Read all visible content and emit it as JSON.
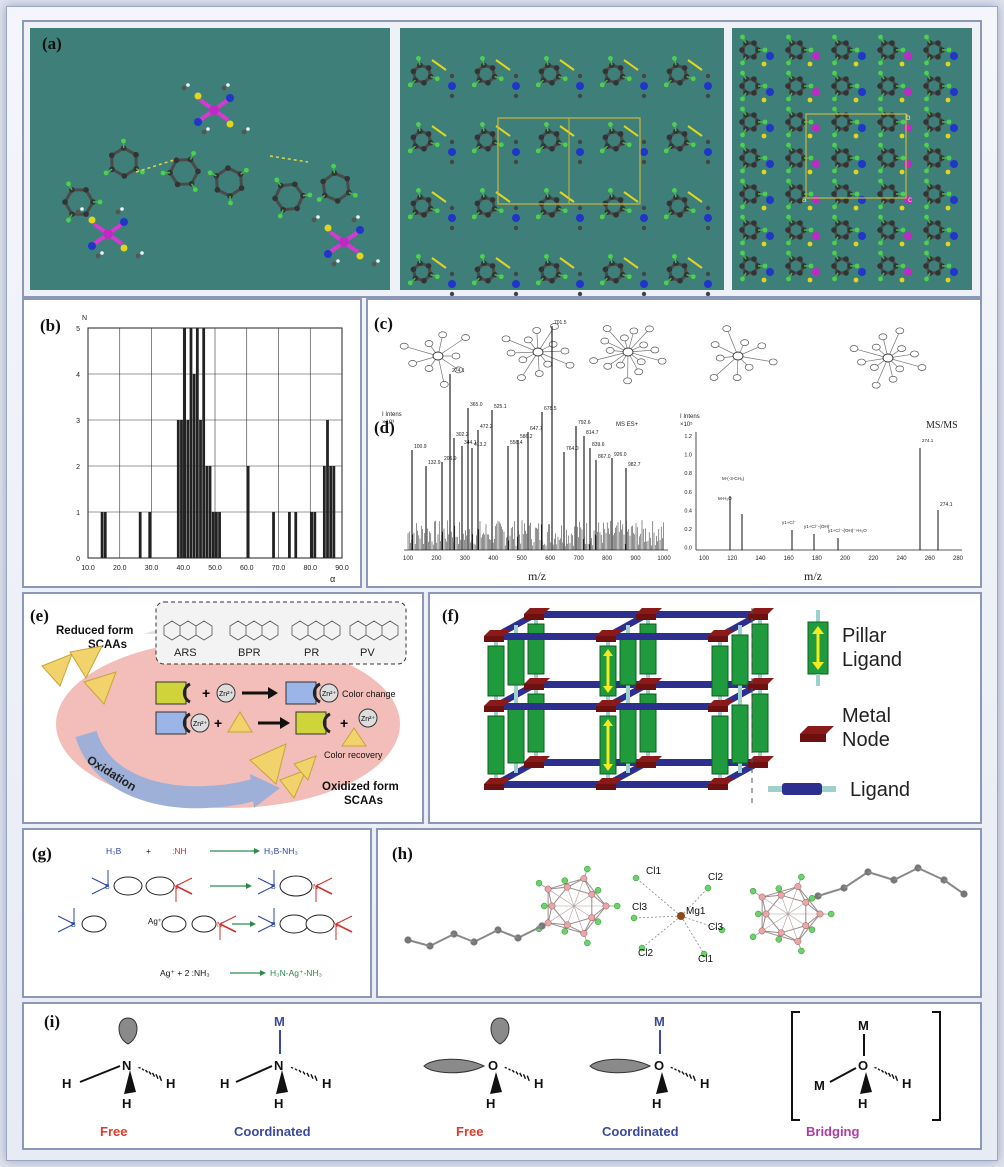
{
  "panels": {
    "a": {
      "label": "(a)",
      "cell_marks": [
        "b",
        "a",
        "c"
      ]
    },
    "b": {
      "label": "(b)"
    },
    "c": {
      "label": "(c)"
    },
    "d": {
      "label": "(d)",
      "left_header_intens": "I Intens",
      "left_header_scale": "×10³",
      "left_tag": "MS ES+",
      "right_header_intens": "I Intens",
      "right_header_scale": "×10⁵",
      "right_title": "MS/MS",
      "xlabel": "m/z",
      "left_peak_labels": [
        "100.9",
        "132.9",
        "206.9",
        "274.1",
        "302.2",
        "344.1",
        "365.0",
        "413.2",
        "472.2",
        "525.1",
        "556.4",
        "586.2",
        "647.7",
        "678.5",
        "701.5",
        "764.0",
        "792.6",
        "814.7",
        "839.6",
        "867.0",
        "926.0",
        "982.7"
      ],
      "right_peak_labels": [
        "M-(-3-CH₃)",
        "M-H₂O",
        "y1+Cl⁻",
        "y1+Cl⁻-(OH)⁻",
        "y1+Cl⁻-(OH)⁻+H₂O",
        "274.1"
      ],
      "left_ticks": [
        "100",
        "200",
        "300",
        "400",
        "500",
        "600",
        "700",
        "800",
        "900",
        "1000"
      ],
      "right_ticks": [
        "100",
        "120",
        "140",
        "160",
        "180",
        "200",
        "220",
        "240",
        "260",
        "280"
      ],
      "right_yticks": [
        "1.2",
        "1.0",
        "0.8",
        "0.6",
        "0.4",
        "0.2",
        "0.0"
      ]
    },
    "e": {
      "label": "(e)",
      "reduced": "Reduced form\nSCAAs",
      "dyes": [
        "ARS",
        "BPR",
        "PR",
        "PV"
      ],
      "zn": "Zn²⁺",
      "color_change": "Color change",
      "color_recovery": "Color recovery",
      "oxidation": "Oxidation",
      "oxidized": "Oxidized form\nSCAAs"
    },
    "f": {
      "label": "(f)",
      "legend": [
        "Pillar\nLigand",
        "Metal\nNode",
        "Ligand"
      ]
    },
    "g": {
      "label": "(g)",
      "eq1_left": "H₃B",
      "eq1_plus": "+",
      "eq1_mid": ":NH",
      "eq1_right": "H₃B-NH₃",
      "eq2_left": "Ag⁺",
      "eq3": "Ag⁺  +  2 :NH₃",
      "eq3_right": "H₃N-Ag⁺-NH₃"
    },
    "h": {
      "label": "(h)",
      "atoms": [
        "Cl1",
        "Cl2",
        "Mg1",
        "Cl3",
        "Cl3",
        "Cl2",
        "Cl1"
      ]
    },
    "i": {
      "label": "(i)",
      "captions": [
        "Free",
        "Coordinated",
        "Free",
        "Coordinated",
        "Bridging"
      ],
      "caption_colors": [
        "#e03a2a",
        "#3a4aa0",
        "#e03a2a",
        "#3a4aa0",
        "#b03aa8"
      ]
    }
  },
  "chart_data": {
    "type": "bar",
    "xlabel": "α",
    "ylabel": "N",
    "xlim": [
      10,
      90
    ],
    "ylim": [
      0,
      5
    ],
    "xticks": [
      "10.0",
      "20.0",
      "30.0",
      "40.0",
      "50.0",
      "60.0",
      "70.0",
      "80.0",
      "90.0"
    ],
    "yticks": [
      "0",
      "1",
      "2",
      "3",
      "4",
      "5"
    ],
    "bins_start": [
      14.0,
      15.0,
      26.0,
      29.0,
      38.0,
      39.0,
      40.0,
      41.0,
      42.0,
      43.0,
      44.0,
      45.0,
      46.0,
      47.0,
      48.0,
      49.0,
      50.0,
      51.0,
      60.0,
      68.0,
      73.0,
      75.0,
      80.0,
      81.0,
      84.0,
      85.0,
      86.0,
      87.0
    ],
    "bin_width": 1.0,
    "values": [
      1,
      1,
      1,
      1,
      3,
      3,
      5,
      3,
      5,
      4,
      5,
      3,
      5,
      2,
      2,
      1,
      1,
      1,
      2,
      1,
      1,
      1,
      1,
      1,
      2,
      3,
      2,
      2
    ]
  }
}
